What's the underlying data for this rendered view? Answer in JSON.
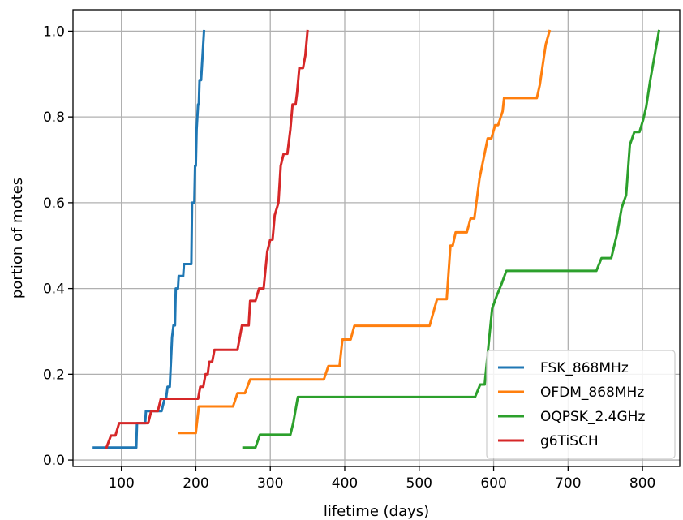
{
  "chart_data": {
    "type": "line",
    "title": "",
    "xlabel": "lifetime (days)",
    "ylabel": "portion of motes",
    "xlim": [
      35,
      850
    ],
    "ylim": [
      -0.015,
      1.05
    ],
    "xticks": [
      100,
      200,
      300,
      400,
      500,
      600,
      700,
      800
    ],
    "yticks": [
      0.0,
      0.2,
      0.4,
      0.6,
      0.8,
      1.0
    ],
    "xtick_labels": [
      "100",
      "200",
      "300",
      "400",
      "500",
      "600",
      "700",
      "800"
    ],
    "ytick_labels": [
      "0.0",
      "0.2",
      "0.4",
      "0.6",
      "0.8",
      "1.0"
    ],
    "grid": true,
    "legend_position": "lower-right",
    "series": [
      {
        "name": "FSK_868MHz",
        "color": "#1f77b4",
        "points": [
          [
            63,
            0.029
          ],
          [
            120,
            0.029
          ],
          [
            121,
            0.086
          ],
          [
            132,
            0.086
          ],
          [
            133,
            0.114
          ],
          [
            154,
            0.114
          ],
          [
            158,
            0.143
          ],
          [
            160,
            0.143
          ],
          [
            162,
            0.171
          ],
          [
            165,
            0.171
          ],
          [
            168,
            0.286
          ],
          [
            170,
            0.314
          ],
          [
            172,
            0.314
          ],
          [
            173,
            0.4
          ],
          [
            176,
            0.4
          ],
          [
            177,
            0.429
          ],
          [
            183,
            0.429
          ],
          [
            184,
            0.457
          ],
          [
            194,
            0.457
          ],
          [
            195,
            0.6
          ],
          [
            198,
            0.6
          ],
          [
            199,
            0.686
          ],
          [
            200,
            0.686
          ],
          [
            201,
            0.771
          ],
          [
            203,
            0.829
          ],
          [
            204,
            0.829
          ],
          [
            205,
            0.886
          ],
          [
            207,
            0.886
          ],
          [
            209,
            0.943
          ],
          [
            211,
            1.0
          ]
        ]
      },
      {
        "name": "OFDM_868MHz",
        "color": "#ff7f0e",
        "points": [
          [
            178,
            0.063
          ],
          [
            200,
            0.063
          ],
          [
            204,
            0.125
          ],
          [
            250,
            0.125
          ],
          [
            256,
            0.156
          ],
          [
            266,
            0.156
          ],
          [
            273,
            0.188
          ],
          [
            372,
            0.188
          ],
          [
            378,
            0.219
          ],
          [
            393,
            0.219
          ],
          [
            397,
            0.281
          ],
          [
            408,
            0.281
          ],
          [
            413,
            0.313
          ],
          [
            514,
            0.313
          ],
          [
            524,
            0.375
          ],
          [
            537,
            0.375
          ],
          [
            542,
            0.5
          ],
          [
            545,
            0.5
          ],
          [
            549,
            0.531
          ],
          [
            564,
            0.531
          ],
          [
            569,
            0.563
          ],
          [
            574,
            0.563
          ],
          [
            581,
            0.656
          ],
          [
            592,
            0.75
          ],
          [
            597,
            0.75
          ],
          [
            602,
            0.781
          ],
          [
            606,
            0.781
          ],
          [
            612,
            0.813
          ],
          [
            614,
            0.844
          ],
          [
            658,
            0.844
          ],
          [
            662,
            0.875
          ],
          [
            670,
            0.969
          ],
          [
            675,
            1.0
          ]
        ]
      },
      {
        "name": "OQPSK_2.4GHz",
        "color": "#2ca02c",
        "points": [
          [
            264,
            0.029
          ],
          [
            280,
            0.029
          ],
          [
            286,
            0.059
          ],
          [
            327,
            0.059
          ],
          [
            331,
            0.088
          ],
          [
            337,
            0.147
          ],
          [
            575,
            0.147
          ],
          [
            582,
            0.176
          ],
          [
            588,
            0.176
          ],
          [
            593,
            0.265
          ],
          [
            598,
            0.353
          ],
          [
            604,
            0.382
          ],
          [
            611,
            0.412
          ],
          [
            617,
            0.441
          ],
          [
            738,
            0.441
          ],
          [
            745,
            0.471
          ],
          [
            758,
            0.471
          ],
          [
            766,
            0.529
          ],
          [
            772,
            0.588
          ],
          [
            778,
            0.618
          ],
          [
            783,
            0.735
          ],
          [
            789,
            0.765
          ],
          [
            796,
            0.765
          ],
          [
            801,
            0.794
          ],
          [
            805,
            0.824
          ],
          [
            810,
            0.882
          ],
          [
            816,
            0.941
          ],
          [
            822,
            1.0
          ]
        ]
      },
      {
        "name": "g6TiSCH",
        "color": "#d62728",
        "points": [
          [
            80,
            0.029
          ],
          [
            86,
            0.057
          ],
          [
            92,
            0.057
          ],
          [
            97,
            0.086
          ],
          [
            136,
            0.086
          ],
          [
            140,
            0.114
          ],
          [
            149,
            0.114
          ],
          [
            153,
            0.143
          ],
          [
            203,
            0.143
          ],
          [
            206,
            0.171
          ],
          [
            210,
            0.171
          ],
          [
            213,
            0.2
          ],
          [
            216,
            0.2
          ],
          [
            218,
            0.229
          ],
          [
            222,
            0.229
          ],
          [
            225,
            0.257
          ],
          [
            256,
            0.257
          ],
          [
            262,
            0.314
          ],
          [
            271,
            0.314
          ],
          [
            273,
            0.371
          ],
          [
            280,
            0.371
          ],
          [
            285,
            0.4
          ],
          [
            291,
            0.4
          ],
          [
            296,
            0.486
          ],
          [
            300,
            0.514
          ],
          [
            303,
            0.514
          ],
          [
            306,
            0.571
          ],
          [
            311,
            0.6
          ],
          [
            314,
            0.686
          ],
          [
            318,
            0.714
          ],
          [
            323,
            0.714
          ],
          [
            327,
            0.771
          ],
          [
            330,
            0.829
          ],
          [
            334,
            0.829
          ],
          [
            336,
            0.857
          ],
          [
            339,
            0.914
          ],
          [
            344,
            0.914
          ],
          [
            347,
            0.943
          ],
          [
            350,
            1.0
          ]
        ]
      }
    ]
  }
}
